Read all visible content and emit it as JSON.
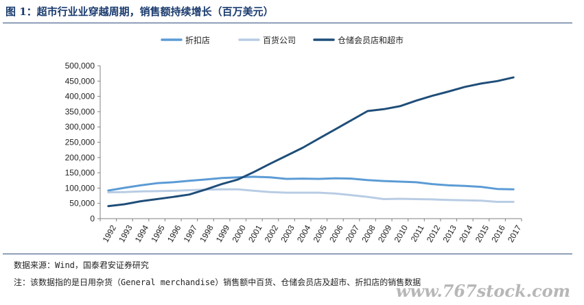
{
  "title": "图 1：超市行业业穿越周期，销售额持续增长（百万美元）",
  "source_note": "数据来源：Wind，国泰君安证券研究",
  "footnote": "注：该数据指的是日用杂货（General merchandise）销售额中百货、仓储会员店及超市、折扣店的销售数据",
  "watermark": "www.767stock.com",
  "chart_data": {
    "type": "line",
    "x": [
      "1992",
      "1993",
      "1994",
      "1995",
      "1996",
      "1997",
      "1998",
      "1999",
      "2000",
      "2001",
      "2002",
      "2003",
      "2004",
      "2005",
      "2006",
      "2007",
      "2008",
      "2009",
      "2010",
      "2011",
      "2012",
      "2013",
      "2014",
      "2015",
      "2016",
      "2017"
    ],
    "ylim": [
      0,
      500000
    ],
    "yticks": [
      0,
      50000,
      100000,
      150000,
      200000,
      250000,
      300000,
      350000,
      400000,
      450000,
      500000
    ],
    "ytick_labels": [
      "0",
      "50,000",
      "100,000",
      "150,000",
      "200,000",
      "250,000",
      "300,000",
      "350,000",
      "400,000",
      "450,000",
      "500,000"
    ],
    "grid": false,
    "legend_position": "top",
    "series": [
      {
        "name": "折扣店",
        "color": "#5b9bd5",
        "values": [
          92000,
          101000,
          109000,
          116000,
          119000,
          124000,
          128000,
          133000,
          135000,
          137000,
          135000,
          130000,
          131000,
          130000,
          132000,
          131000,
          126000,
          123000,
          121000,
          119000,
          113000,
          109000,
          107000,
          104000,
          97000,
          96000
        ]
      },
      {
        "name": "百货公司",
        "color": "#b8cce4",
        "values": [
          86000,
          87000,
          89000,
          90000,
          91000,
          93000,
          95000,
          96000,
          96000,
          91000,
          87000,
          85000,
          85000,
          85000,
          82000,
          77000,
          71000,
          64000,
          65000,
          64000,
          63000,
          61000,
          60000,
          59000,
          55000,
          55000
        ]
      },
      {
        "name": "仓储会员店和超市",
        "color": "#1f4e79",
        "values": [
          41000,
          47000,
          57000,
          64000,
          71000,
          79000,
          95000,
          113000,
          128000,
          153000,
          180000,
          206000,
          232000,
          262000,
          292000,
          322000,
          352000,
          358000,
          368000,
          386000,
          402000,
          416000,
          431000,
          442000,
          450000,
          462000
        ]
      }
    ]
  }
}
